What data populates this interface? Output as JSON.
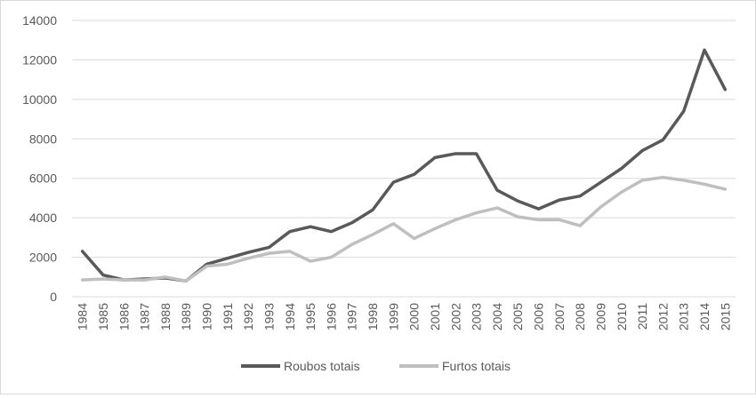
{
  "chart_data": {
    "type": "line",
    "title": "",
    "xlabel": "",
    "ylabel": "",
    "ylim": [
      0,
      14000
    ],
    "yticks": [
      0,
      2000,
      4000,
      6000,
      8000,
      10000,
      12000,
      14000
    ],
    "grid": true,
    "legend_position": "bottom",
    "categories": [
      "1984",
      "1985",
      "1986",
      "1987",
      "1988",
      "1989",
      "1990",
      "1991",
      "1992",
      "1993",
      "1994",
      "1995",
      "1996",
      "1997",
      "1998",
      "1999",
      "2000",
      "2001",
      "2002",
      "2003",
      "2004",
      "2005",
      "2006",
      "2007",
      "2008",
      "2009",
      "2010",
      "2011",
      "2012",
      "2013",
      "2014",
      "2015"
    ],
    "series": [
      {
        "name": "Roubos totais",
        "color": "#595959",
        "values": [
          2300,
          1100,
          850,
          900,
          950,
          800,
          1650,
          1950,
          2250,
          2500,
          3300,
          3550,
          3300,
          3750,
          4400,
          5800,
          6200,
          7050,
          7250,
          7250,
          5400,
          4850,
          4450,
          4900,
          5100,
          5800,
          6500,
          7400,
          7950,
          9400,
          12500,
          10500
        ]
      },
      {
        "name": "Furtos totais",
        "color": "#bfbfbf",
        "values": [
          850,
          900,
          850,
          850,
          1000,
          800,
          1550,
          1650,
          1950,
          2200,
          2300,
          1800,
          2000,
          2650,
          3150,
          3700,
          2950,
          3450,
          3900,
          4250,
          4500,
          4050,
          3900,
          3900,
          3600,
          4550,
          5300,
          5900,
          6050,
          5900,
          5700,
          5450
        ]
      }
    ]
  }
}
